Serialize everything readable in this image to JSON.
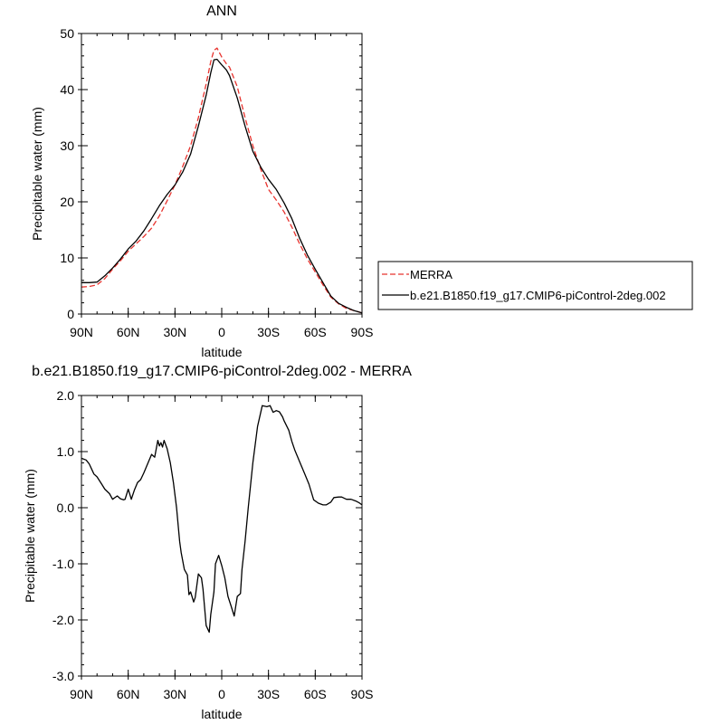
{
  "chart_data": [
    {
      "type": "line",
      "title": "ANN",
      "xlabel": "latitude",
      "ylabel": "Precipitable water (mm)",
      "xlim": [
        90,
        -90
      ],
      "ylim": [
        0,
        50
      ],
      "x_ticks": [
        {
          "value": 90,
          "label": "90N"
        },
        {
          "value": 60,
          "label": "60N"
        },
        {
          "value": 30,
          "label": "30N"
        },
        {
          "value": 0,
          "label": "0"
        },
        {
          "value": -30,
          "label": "30S"
        },
        {
          "value": -60,
          "label": "60S"
        },
        {
          "value": -90,
          "label": "90S"
        }
      ],
      "y_ticks": [
        {
          "value": 0,
          "label": "0"
        },
        {
          "value": 10,
          "label": "10"
        },
        {
          "value": 20,
          "label": "20"
        },
        {
          "value": 30,
          "label": "30"
        },
        {
          "value": 40,
          "label": "40"
        },
        {
          "value": 50,
          "label": "50"
        }
      ],
      "legend_position": "right",
      "series": [
        {
          "name": "MERRA",
          "color": "#e8332e",
          "dash": "dashed",
          "x": [
            90,
            85,
            80,
            75,
            70,
            65,
            60,
            55,
            50,
            45,
            40,
            35,
            30,
            25,
            20,
            15,
            10,
            7,
            5,
            3,
            0,
            -3,
            -5,
            -10,
            -15,
            -20,
            -25,
            -30,
            -35,
            -40,
            -45,
            -50,
            -55,
            -60,
            -65,
            -70,
            -75,
            -80,
            -85,
            -90
          ],
          "y": [
            4.8,
            4.9,
            5.2,
            6.3,
            8.0,
            9.5,
            11.2,
            12.5,
            13.8,
            15.3,
            17.5,
            20.2,
            23.0,
            26.3,
            30.0,
            35.0,
            41.0,
            45.0,
            47.0,
            47.4,
            45.8,
            44.6,
            44.0,
            40.5,
            35.0,
            30.0,
            25.8,
            22.2,
            20.3,
            18.2,
            15.5,
            12.5,
            9.8,
            7.5,
            5.2,
            3.0,
            1.8,
            1.0,
            0.6,
            0.2
          ]
        },
        {
          "name": "b.e21.B1850.f19_g17.CMIP6-piControl-2deg.002",
          "color": "#000000",
          "dash": "solid",
          "x": [
            90,
            85,
            80,
            75,
            70,
            65,
            60,
            55,
            50,
            45,
            40,
            35,
            30,
            25,
            20,
            15,
            10,
            7,
            5,
            3,
            0,
            -3,
            -5,
            -10,
            -15,
            -20,
            -25,
            -30,
            -35,
            -40,
            -45,
            -50,
            -55,
            -60,
            -65,
            -70,
            -75,
            -80,
            -85,
            -90
          ],
          "y": [
            5.6,
            5.6,
            5.7,
            6.8,
            8.2,
            9.8,
            11.6,
            13.0,
            14.8,
            17.0,
            19.3,
            21.3,
            23.0,
            25.3,
            28.5,
            33.5,
            39.0,
            43.0,
            45.3,
            45.4,
            44.4,
            43.5,
            42.5,
            38.5,
            33.5,
            29.0,
            26.2,
            24.0,
            22.2,
            19.8,
            17.0,
            13.5,
            10.5,
            8.0,
            5.6,
            3.2,
            1.9,
            1.2,
            0.6,
            0.2
          ]
        }
      ]
    },
    {
      "type": "line",
      "title": "b.e21.B1850.f19_g17.CMIP6-piControl-2deg.002 - MERRA",
      "xlabel": "latitude",
      "ylabel": "Precipitable water (mm)",
      "xlim": [
        90,
        -90
      ],
      "ylim": [
        -3.0,
        2.0
      ],
      "x_ticks": [
        {
          "value": 90,
          "label": "90N"
        },
        {
          "value": 60,
          "label": "60N"
        },
        {
          "value": 30,
          "label": "30N"
        },
        {
          "value": 0,
          "label": "0"
        },
        {
          "value": -30,
          "label": "30S"
        },
        {
          "value": -60,
          "label": "60S"
        },
        {
          "value": -90,
          "label": "90S"
        }
      ],
      "y_ticks": [
        {
          "value": -3.0,
          "label": "-3.0"
        },
        {
          "value": -2.0,
          "label": "-2.0"
        },
        {
          "value": -1.0,
          "label": "-1.0"
        },
        {
          "value": 0.0,
          "label": "0.0"
        },
        {
          "value": 1.0,
          "label": "1.0"
        },
        {
          "value": 2.0,
          "label": "2.0"
        }
      ],
      "series": [
        {
          "color": "#000000",
          "dash": "solid",
          "x": [
            90,
            87,
            85,
            82,
            80,
            77,
            75,
            72,
            70,
            67,
            65,
            63,
            62,
            60,
            58,
            56,
            54,
            52,
            50,
            48,
            45,
            43,
            41,
            40,
            39,
            38,
            37,
            35,
            33,
            31,
            29,
            27,
            26,
            24,
            22,
            21,
            20,
            18,
            17,
            15,
            13,
            12,
            10,
            8,
            7,
            5,
            4,
            2,
            0,
            -2,
            -4,
            -6,
            -8,
            -10,
            -12,
            -13,
            -15,
            -17,
            -20,
            -23,
            -26,
            -29,
            -31,
            -33,
            -35,
            -37,
            -39,
            -40,
            -43,
            -45,
            -47,
            -50,
            -53,
            -56,
            -59,
            -62,
            -65,
            -67,
            -70,
            -72,
            -75,
            -77,
            -80,
            -83,
            -86,
            -88,
            -90
          ],
          "y": [
            0.88,
            0.85,
            0.78,
            0.6,
            0.55,
            0.42,
            0.33,
            0.25,
            0.15,
            0.21,
            0.16,
            0.14,
            0.15,
            0.33,
            0.15,
            0.32,
            0.45,
            0.5,
            0.62,
            0.75,
            0.95,
            0.9,
            1.2,
            1.1,
            1.16,
            1.08,
            1.2,
            1.05,
            0.8,
            0.45,
            0.0,
            -0.6,
            -0.8,
            -1.1,
            -1.2,
            -1.55,
            -1.5,
            -1.68,
            -1.6,
            -1.18,
            -1.25,
            -1.45,
            -2.1,
            -2.22,
            -1.9,
            -1.5,
            -1.0,
            -0.85,
            -1.03,
            -1.25,
            -1.58,
            -1.75,
            -1.93,
            -1.58,
            -1.53,
            -1.1,
            -0.6,
            0.0,
            0.8,
            1.45,
            1.82,
            1.8,
            1.82,
            1.7,
            1.73,
            1.71,
            1.62,
            1.55,
            1.38,
            1.18,
            1.02,
            0.82,
            0.62,
            0.42,
            0.14,
            0.08,
            0.05,
            0.05,
            0.1,
            0.18,
            0.19,
            0.19,
            0.15,
            0.15,
            0.12,
            0.09,
            0.05
          ]
        }
      ]
    }
  ]
}
